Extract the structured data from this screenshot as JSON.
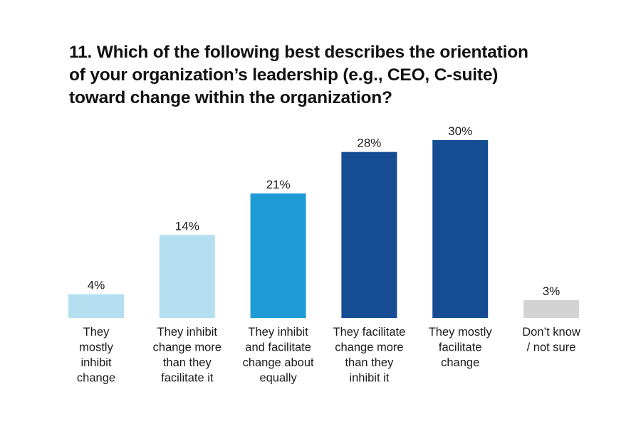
{
  "chart_data": {
    "type": "bar",
    "title": [
      "11. Which of the following best describes the orientation",
      "of your organization’s leadership (e.g., CEO, C-suite)",
      "toward change within the organization?"
    ],
    "categories": [
      [
        "They",
        "mostly",
        "inhibit",
        "change"
      ],
      [
        "They inhibit",
        "change more",
        "than they",
        "facilitate it"
      ],
      [
        "They inhibit",
        "and facilitate",
        "change about",
        "equally"
      ],
      [
        "They facilitate",
        "change more",
        "than they",
        "inhibit it"
      ],
      [
        "They mostly",
        "facilitate",
        "change"
      ],
      [
        "Don’t know",
        "/ not sure"
      ]
    ],
    "values": [
      4,
      14,
      21,
      28,
      30,
      3
    ],
    "value_labels": [
      "4%",
      "14%",
      "21%",
      "28%",
      "30%",
      "3%"
    ],
    "colors": [
      "#b3dff0",
      "#b3dff0",
      "#1e9ad6",
      "#154c94",
      "#154c94",
      "#d3d3d3"
    ],
    "unit": "%",
    "ylim": [
      0,
      30
    ],
    "xlabel": "",
    "ylabel": "",
    "grid": false,
    "legend": "none"
  }
}
